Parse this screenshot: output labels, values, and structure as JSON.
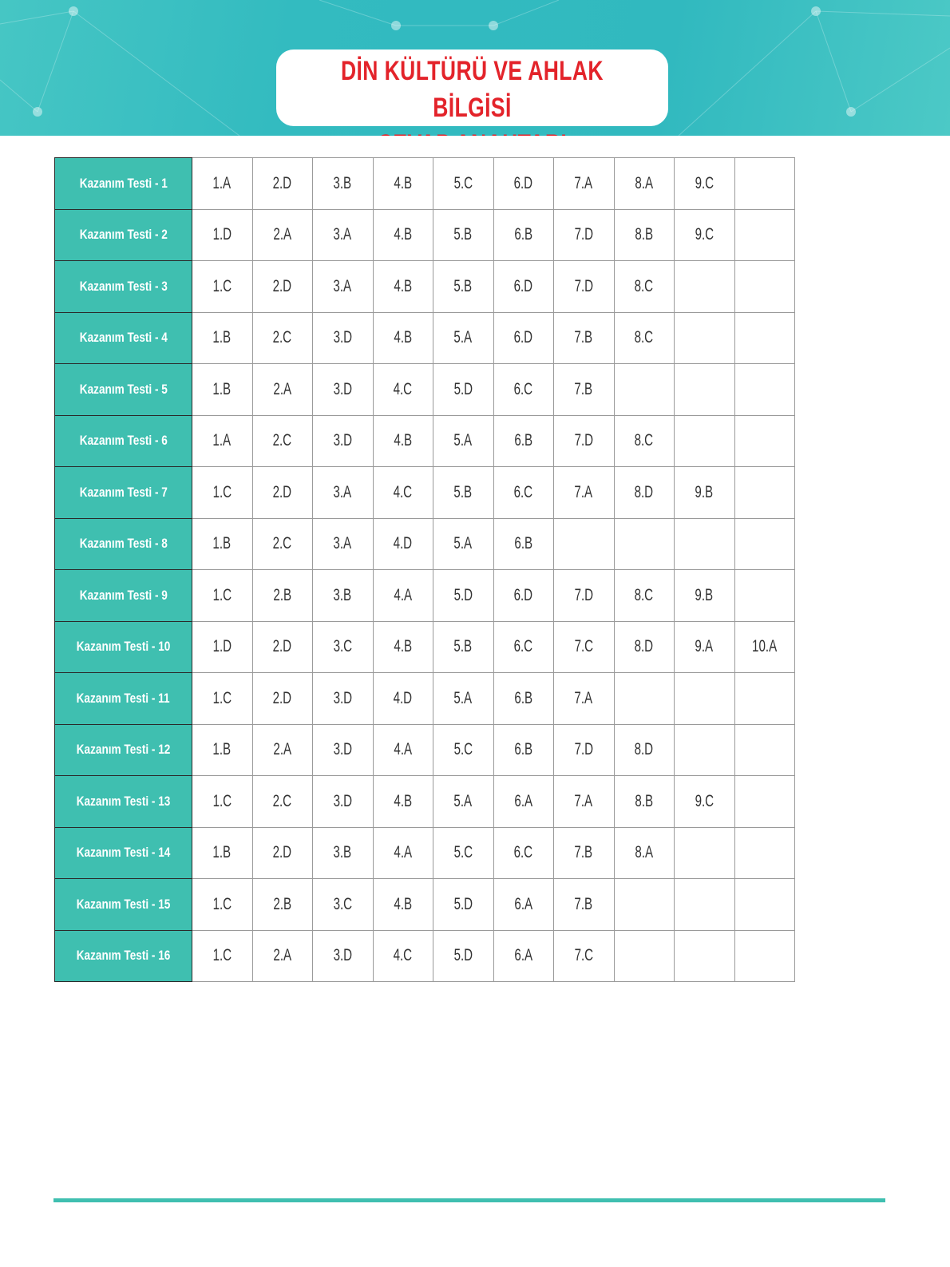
{
  "header": {
    "title_line1": "DİN KÜLTÜRÜ VE AHLAK BİLGİSİ",
    "title_line2": "CEVAP ANAHTARI",
    "banner_color": "#35bcc0",
    "title_color": "#e3232a"
  },
  "answer_key": {
    "label_color": "#3fbfb0",
    "rows": [
      {
        "label": "Kazanım Testi - 1",
        "answers": [
          "1.A",
          "2.D",
          "3.B",
          "4.B",
          "5.C",
          "6.D",
          "7.A",
          "8.A",
          "9.C",
          ""
        ]
      },
      {
        "label": "Kazanım Testi - 2",
        "answers": [
          "1.D",
          "2.A",
          "3.A",
          "4.B",
          "5.B",
          "6.B",
          "7.D",
          "8.B",
          "9.C",
          ""
        ]
      },
      {
        "label": "Kazanım Testi - 3",
        "answers": [
          "1.C",
          "2.D",
          "3.A",
          "4.B",
          "5.B",
          "6.D",
          "7.D",
          "8.C",
          "",
          ""
        ]
      },
      {
        "label": "Kazanım Testi - 4",
        "answers": [
          "1.B",
          "2.C",
          "3.D",
          "4.B",
          "5.A",
          "6.D",
          "7.B",
          "8.C",
          "",
          ""
        ]
      },
      {
        "label": "Kazanım Testi - 5",
        "answers": [
          "1.B",
          "2.A",
          "3.D",
          "4.C",
          "5.D",
          "6.C",
          "7.B",
          "",
          "",
          ""
        ]
      },
      {
        "label": "Kazanım Testi - 6",
        "answers": [
          "1.A",
          "2.C",
          "3.D",
          "4.B",
          "5.A",
          "6.B",
          "7.D",
          "8.C",
          "",
          ""
        ]
      },
      {
        "label": "Kazanım Testi - 7",
        "answers": [
          "1.C",
          "2.D",
          "3.A",
          "4.C",
          "5.B",
          "6.C",
          "7.A",
          "8.D",
          "9.B",
          ""
        ]
      },
      {
        "label": "Kazanım Testi - 8",
        "answers": [
          "1.B",
          "2.C",
          "3.A",
          "4.D",
          "5.A",
          "6.B",
          "",
          "",
          "",
          ""
        ]
      },
      {
        "label": "Kazanım Testi - 9",
        "answers": [
          "1.C",
          "2.B",
          "3.B",
          "4.A",
          "5.D",
          "6.D",
          "7.D",
          "8.C",
          "9.B",
          ""
        ]
      },
      {
        "label": "Kazanım Testi - 10",
        "answers": [
          "1.D",
          "2.D",
          "3.C",
          "4.B",
          "5.B",
          "6.C",
          "7.C",
          "8.D",
          "9.A",
          "10.A"
        ]
      },
      {
        "label": "Kazanım Testi - 11",
        "answers": [
          "1.C",
          "2.D",
          "3.D",
          "4.D",
          "5.A",
          "6.B",
          "7.A",
          "",
          "",
          ""
        ]
      },
      {
        "label": "Kazanım Testi - 12",
        "answers": [
          "1.B",
          "2.A",
          "3.D",
          "4.A",
          "5.C",
          "6.B",
          "7.D",
          "8.D",
          "",
          ""
        ]
      },
      {
        "label": "Kazanım Testi - 13",
        "answers": [
          "1.C",
          "2.C",
          "3.D",
          "4.B",
          "5.A",
          "6.A",
          "7.A",
          "8.B",
          "9.C",
          ""
        ]
      },
      {
        "label": "Kazanım Testi - 14",
        "answers": [
          "1.B",
          "2.D",
          "3.B",
          "4.A",
          "5.C",
          "6.C",
          "7.B",
          "8.A",
          "",
          ""
        ]
      },
      {
        "label": "Kazanım Testi - 15",
        "answers": [
          "1.C",
          "2.B",
          "3.C",
          "4.B",
          "5.D",
          "6.A",
          "7.B",
          "",
          "",
          ""
        ]
      },
      {
        "label": "Kazanım Testi - 16",
        "answers": [
          "1.C",
          "2.A",
          "3.D",
          "4.C",
          "5.D",
          "6.A",
          "7.C",
          "",
          "",
          ""
        ]
      }
    ]
  }
}
